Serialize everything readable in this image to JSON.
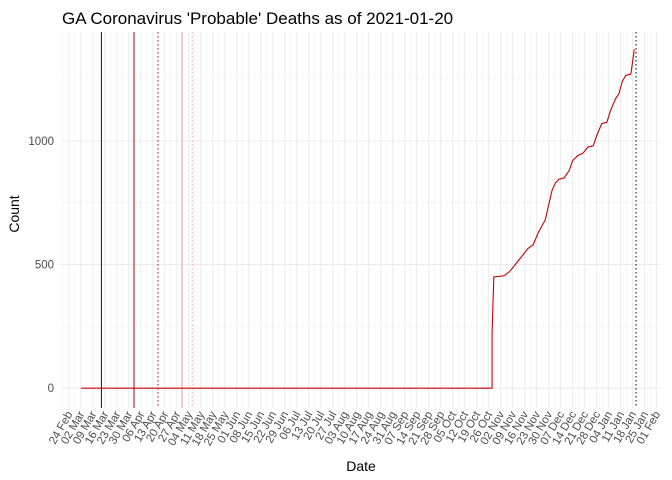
{
  "chart_data": {
    "type": "line",
    "title": "GA Coronavirus 'Probable' Deaths as of 2021-01-20",
    "xlabel": "Date",
    "ylabel": "Count",
    "x_type": "date",
    "xlim": [
      "2020-02-20",
      "2021-02-03"
    ],
    "ylim": [
      -80,
      1440
    ],
    "grid": true,
    "legend": "none",
    "y_ticks": [
      0,
      500,
      1000
    ],
    "x_tick_labels": [
      {
        "date": "2020-02-24",
        "label": "24 Feb"
      },
      {
        "date": "2020-03-02",
        "label": "02 Mar"
      },
      {
        "date": "2020-03-09",
        "label": "09 Mar"
      },
      {
        "date": "2020-03-16",
        "label": "16 Mar"
      },
      {
        "date": "2020-03-23",
        "label": "23 Mar"
      },
      {
        "date": "2020-03-30",
        "label": "30 Mar"
      },
      {
        "date": "2020-04-06",
        "label": "06 Apr"
      },
      {
        "date": "2020-04-13",
        "label": "13 Apr"
      },
      {
        "date": "2020-04-20",
        "label": "20 Apr"
      },
      {
        "date": "2020-04-27",
        "label": "27 Apr"
      },
      {
        "date": "2020-05-04",
        "label": "04 May"
      },
      {
        "date": "2020-05-11",
        "label": "11 May"
      },
      {
        "date": "2020-05-18",
        "label": "18 May"
      },
      {
        "date": "2020-05-25",
        "label": "25 May"
      },
      {
        "date": "2020-06-01",
        "label": "01 Jun"
      },
      {
        "date": "2020-06-08",
        "label": "08 Jun"
      },
      {
        "date": "2020-06-15",
        "label": "15 Jun"
      },
      {
        "date": "2020-06-22",
        "label": "22 Jun"
      },
      {
        "date": "2020-06-29",
        "label": "29 Jun"
      },
      {
        "date": "2020-07-06",
        "label": "06 Jul"
      },
      {
        "date": "2020-07-13",
        "label": "13 Jul"
      },
      {
        "date": "2020-07-20",
        "label": "20 Jul"
      },
      {
        "date": "2020-07-27",
        "label": "27 Jul"
      },
      {
        "date": "2020-08-03",
        "label": "03 Aug"
      },
      {
        "date": "2020-08-10",
        "label": "10 Aug"
      },
      {
        "date": "2020-08-17",
        "label": "17 Aug"
      },
      {
        "date": "2020-08-24",
        "label": "24 Aug"
      },
      {
        "date": "2020-08-31",
        "label": "31 Aug"
      },
      {
        "date": "2020-09-07",
        "label": "07 Sep"
      },
      {
        "date": "2020-09-14",
        "label": "14 Sep"
      },
      {
        "date": "2020-09-21",
        "label": "21 Sep"
      },
      {
        "date": "2020-09-28",
        "label": "28 Sep"
      },
      {
        "date": "2020-10-05",
        "label": "05 Oct"
      },
      {
        "date": "2020-10-12",
        "label": "12 Oct"
      },
      {
        "date": "2020-10-19",
        "label": "19 Oct"
      },
      {
        "date": "2020-10-26",
        "label": "26 Oct"
      },
      {
        "date": "2020-11-02",
        "label": "02 Nov"
      },
      {
        "date": "2020-11-09",
        "label": "09 Nov"
      },
      {
        "date": "2020-11-16",
        "label": "16 Nov"
      },
      {
        "date": "2020-11-23",
        "label": "23 Nov"
      },
      {
        "date": "2020-11-30",
        "label": "30 Nov"
      },
      {
        "date": "2020-12-07",
        "label": "07 Dec"
      },
      {
        "date": "2020-12-14",
        "label": "14 Dec"
      },
      {
        "date": "2020-12-21",
        "label": "21 Dec"
      },
      {
        "date": "2020-12-28",
        "label": "28 Dec"
      },
      {
        "date": "2021-01-04",
        "label": "04 Jan"
      },
      {
        "date": "2021-01-11",
        "label": "11 Jan"
      },
      {
        "date": "2021-01-18",
        "label": "18 Jan"
      },
      {
        "date": "2021-01-25",
        "label": "25 Jan"
      },
      {
        "date": "2021-02-01",
        "label": "01 Feb"
      }
    ],
    "series": [
      {
        "color": "#cc0000",
        "points": [
          [
            "2020-03-02",
            0
          ],
          [
            "2020-10-28",
            0
          ],
          [
            "2020-10-28",
            220
          ],
          [
            "2020-10-29",
            450
          ],
          [
            "2020-11-01",
            452
          ],
          [
            "2020-11-04",
            455
          ],
          [
            "2020-11-07",
            470
          ],
          [
            "2020-11-10",
            495
          ],
          [
            "2020-11-14",
            530
          ],
          [
            "2020-11-18",
            565
          ],
          [
            "2020-11-21",
            580
          ],
          [
            "2020-11-24",
            630
          ],
          [
            "2020-11-28",
            680
          ],
          [
            "2020-11-30",
            740
          ],
          [
            "2020-12-02",
            800
          ],
          [
            "2020-12-04",
            830
          ],
          [
            "2020-12-06",
            845
          ],
          [
            "2020-12-09",
            850
          ],
          [
            "2020-12-12",
            880
          ],
          [
            "2020-12-14",
            920
          ],
          [
            "2020-12-17",
            940
          ],
          [
            "2020-12-20",
            950
          ],
          [
            "2020-12-23",
            975
          ],
          [
            "2020-12-26",
            980
          ],
          [
            "2020-12-28",
            1020
          ],
          [
            "2020-12-31",
            1070
          ],
          [
            "2021-01-03",
            1075
          ],
          [
            "2021-01-05",
            1120
          ],
          [
            "2021-01-08",
            1170
          ],
          [
            "2021-01-10",
            1190
          ],
          [
            "2021-01-12",
            1240
          ],
          [
            "2021-01-14",
            1265
          ],
          [
            "2021-01-17",
            1270
          ],
          [
            "2021-01-19",
            1370
          ]
        ]
      }
    ],
    "reference_lines": [
      {
        "date": "2020-03-14",
        "color": "#0000cc",
        "style": "solid"
      },
      {
        "date": "2020-04-02",
        "color": "#cc0000",
        "style": "solid"
      },
      {
        "date": "2020-04-16",
        "color": "#cc0000",
        "style": "dotted"
      },
      {
        "date": "2020-04-30",
        "color": "#f2a0a0",
        "style": "solid"
      },
      {
        "date": "2020-05-06",
        "color": "#f2a0a0",
        "style": "dotted"
      },
      {
        "date": "2021-01-20",
        "color": "#000000",
        "style": "dotted"
      }
    ]
  }
}
